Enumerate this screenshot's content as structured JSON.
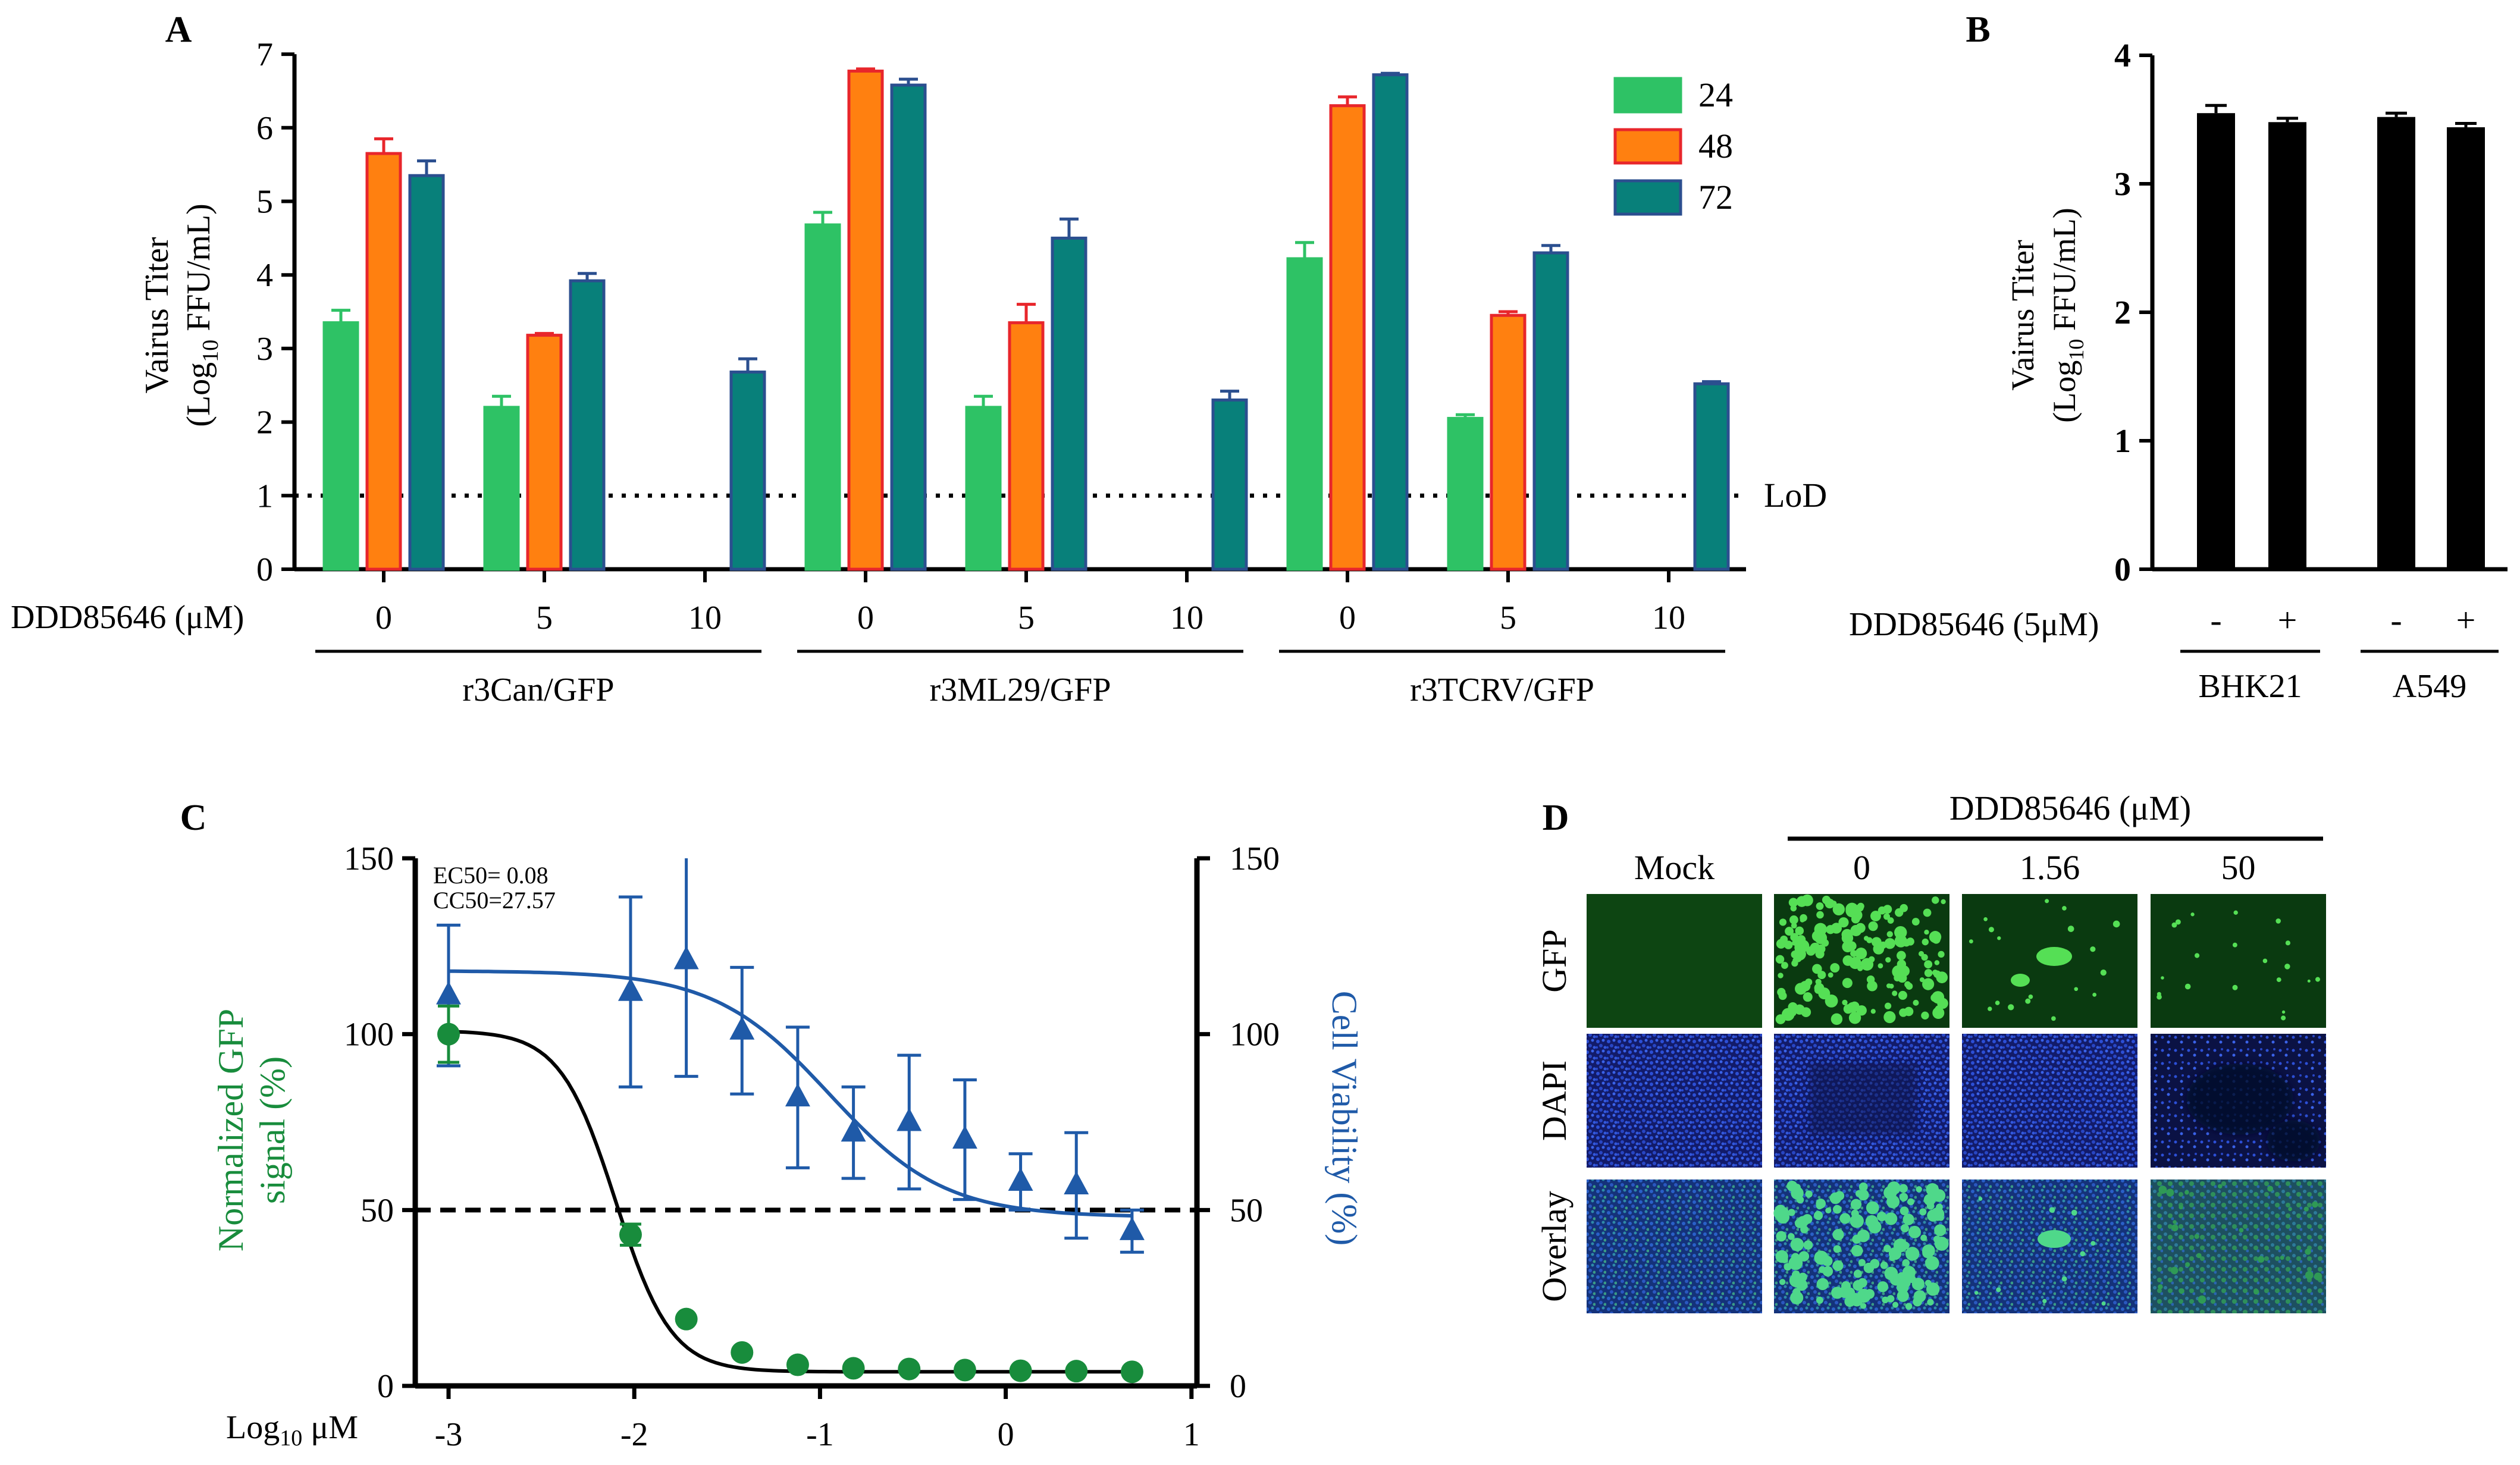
{
  "colors": {
    "h24": "#2ec265",
    "h24_edge": "#2ec265",
    "h48": "#ff8010",
    "h48_edge": "#e8262b",
    "h72": "#08807a",
    "h72_edge": "#2b4f8f",
    "black": "#000000",
    "green_dark": "#188c3c",
    "blue": "#1f5aa8",
    "gfp_bg": "#0f4a14",
    "gfp_cell": "#5ae35a",
    "dapi_bg": "#121b6a",
    "dapi_cell": "#2c4fd6"
  },
  "panel_labels": {
    "a": "A",
    "b": "B",
    "c": "C",
    "d": "D"
  },
  "chart_data": [
    {
      "id": "A",
      "type": "bar",
      "ylabel_line1": "Vairus Titer",
      "ylabel_line2_base": "(Log",
      "ylabel_line2_sub": "10",
      "ylabel_line2_tail": " FFU/mL)",
      "ylim": [
        0,
        7
      ],
      "yticks": [
        "0",
        "1",
        "2",
        "3",
        "4",
        "5",
        "6",
        "7"
      ],
      "xaxis_name": "DDD85646 (μM)",
      "concentrations": [
        "0",
        "5",
        "10",
        "0",
        "5",
        "10",
        "0",
        "5",
        "10"
      ],
      "virus_groups": [
        "r3Can/GFP",
        "r3ML29/GFP",
        "r3TCRV/GFP"
      ],
      "legend": [
        "24",
        "48",
        "72"
      ],
      "lod_label": "LoD",
      "lod_value": 1,
      "series": [
        {
          "name": "24",
          "values": [
            3.35,
            2.2,
            null,
            4.68,
            2.2,
            null,
            4.22,
            2.05,
            null
          ],
          "errors": [
            0.17,
            0.15,
            null,
            0.17,
            0.15,
            null,
            0.22,
            0.05,
            null
          ]
        },
        {
          "name": "48",
          "values": [
            5.65,
            3.18,
            null,
            6.77,
            3.35,
            null,
            6.3,
            3.45,
            null
          ],
          "errors": [
            0.2,
            0,
            null,
            0.03,
            0.25,
            null,
            0.12,
            0.05,
            null
          ]
        },
        {
          "name": "72",
          "values": [
            5.35,
            3.92,
            2.68,
            6.58,
            4.5,
            2.3,
            6.72,
            4.3,
            2.52
          ],
          "errors": [
            0.2,
            0.1,
            0.18,
            0.08,
            0.26,
            0.12,
            0.02,
            0.1,
            0.03
          ]
        }
      ]
    },
    {
      "id": "B",
      "type": "bar",
      "ylabel_line1": "Vairus Titer",
      "ylabel_line2_base": "(Log",
      "ylabel_line2_sub": "10",
      "ylabel_line2_tail": " FFU/mL)",
      "ylim": [
        0,
        4
      ],
      "yticks": [
        "0",
        "1",
        "2",
        "3",
        "4"
      ],
      "xaxis_name": "DDD85646 (5μM)",
      "treatment": [
        "-",
        "+",
        "-",
        "+"
      ],
      "cell_groups": [
        "BHK21",
        "A549"
      ],
      "values": [
        3.55,
        3.48,
        3.52,
        3.44
      ],
      "errors": [
        0.06,
        0.03,
        0.03,
        0.03
      ]
    },
    {
      "id": "C",
      "type": "scatter",
      "xlabel_base": "Log",
      "xlabel_sub": "10",
      "xlabel_tail": " μM",
      "xlim": [
        -3.2,
        1
      ],
      "xticks": [
        "-3",
        "-2",
        "-1",
        "0",
        "1"
      ],
      "ylim": [
        0,
        150
      ],
      "yticks": [
        "0",
        "50",
        "100",
        "150"
      ],
      "yticks_right": [
        "0",
        "50",
        "100",
        "150"
      ],
      "ylabel_left_line1": "Normalized GFP",
      "ylabel_left_line2": "signal (%)",
      "ylabel_right": "Cell Viability (%)",
      "annotations": [
        "EC50= 0.08",
        "CC50=27.57"
      ],
      "reference_line": 50,
      "series": [
        {
          "name": "Normalized GFP signal",
          "x": [
            -3,
            -2.02,
            -1.72,
            -1.42,
            -1.12,
            -0.82,
            -0.52,
            -0.22,
            0.08,
            0.38,
            0.68
          ],
          "y": [
            100,
            43,
            19,
            9.5,
            6,
            5,
            4.8,
            4.5,
            4.3,
            4.2,
            4.0
          ],
          "err": [
            8,
            3,
            0,
            0,
            0,
            0,
            0,
            0,
            0,
            0,
            0
          ]
        },
        {
          "name": "Cell Viability",
          "x": [
            -3,
            -2.02,
            -1.72,
            -1.42,
            -1.12,
            -0.82,
            -0.52,
            -0.22,
            0.08,
            0.38,
            0.68
          ],
          "y": [
            111,
            112,
            121,
            101,
            82,
            72,
            75,
            70,
            58,
            57,
            44
          ],
          "err": [
            20,
            27,
            33,
            18,
            20,
            13,
            19,
            17,
            8,
            15,
            6
          ]
        }
      ]
    }
  ],
  "panel_d": {
    "header": "DDD85646 (μM)",
    "columns": [
      "Mock",
      "0",
      "1.56",
      "50"
    ],
    "rows": [
      "GFP",
      "DAPI",
      "Overlay"
    ]
  }
}
